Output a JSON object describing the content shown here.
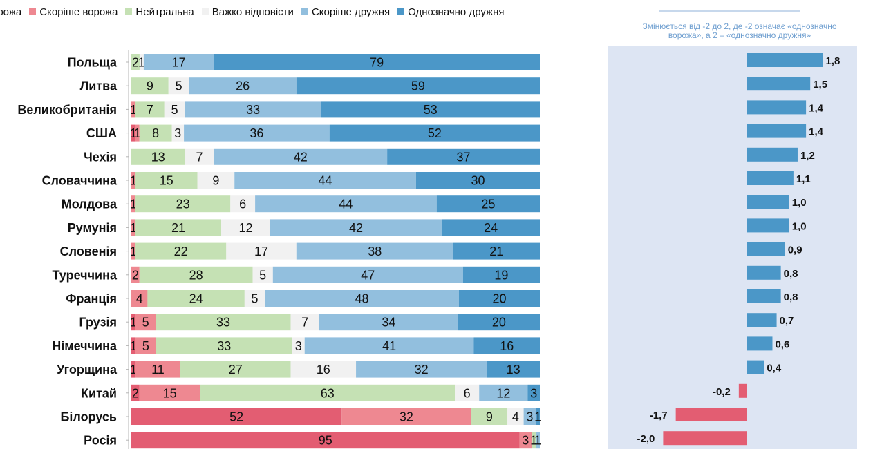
{
  "legend": [
    {
      "label": "орожа",
      "color": "#e35d72"
    },
    {
      "label": "Скоріше ворожа",
      "color": "#ee8891"
    },
    {
      "label": "Нейтральна",
      "color": "#c5e1b4"
    },
    {
      "label": "Важко відповісти",
      "color": "#f1f1f1"
    },
    {
      "label": "Скоріше дружня",
      "color": "#92bfde"
    },
    {
      "label": "Однозначно дружня",
      "color": "#4b97c8"
    }
  ],
  "right_note": {
    "line1": "Змінюється від -2 до 2, де -2 означає «однозначно",
    "line2": "ворожа», а 2 – «однозначно дружня»"
  },
  "chart_data": [
    {
      "type": "bar",
      "orientation": "horizontal",
      "stacked": true,
      "categories": [
        "Польща",
        "Литва",
        "Великобританія",
        "США",
        "Чехія",
        "Словаччина",
        "Молдова",
        "Румунія",
        "Словенія",
        "Туреччина",
        "Франція",
        "Грузія",
        "Німеччина",
        "Угорщина",
        "Китай",
        "Білорусь",
        "Росія"
      ],
      "series": [
        {
          "name": "орожа",
          "color": "#e35d72",
          "values": [
            0,
            0,
            0,
            1,
            0,
            0,
            0,
            0,
            0,
            0,
            0,
            1,
            1,
            1,
            2,
            52,
            95
          ]
        },
        {
          "name": "Скоріше ворожа",
          "color": "#ee8891",
          "values": [
            0,
            0,
            1,
            1,
            0,
            1,
            1,
            1,
            1,
            2,
            4,
            5,
            5,
            11,
            15,
            32,
            3
          ]
        },
        {
          "name": "Нейтральна",
          "color": "#c5e1b4",
          "values": [
            2,
            9,
            7,
            8,
            13,
            15,
            23,
            21,
            22,
            28,
            24,
            33,
            33,
            27,
            63,
            9,
            1
          ]
        },
        {
          "name": "Важко відповісти",
          "color": "#f1f1f1",
          "values": [
            1,
            5,
            5,
            3,
            7,
            9,
            6,
            12,
            17,
            5,
            5,
            7,
            3,
            16,
            6,
            4,
            0
          ]
        },
        {
          "name": "Скоріше дружня",
          "color": "#92bfde",
          "values": [
            17,
            26,
            33,
            36,
            42,
            44,
            44,
            42,
            38,
            47,
            48,
            34,
            41,
            32,
            12,
            3,
            1
          ]
        },
        {
          "name": "Однозначно дружня",
          "color": "#4b97c8",
          "values": [
            79,
            59,
            53,
            52,
            37,
            30,
            25,
            24,
            21,
            19,
            20,
            20,
            16,
            13,
            3,
            1,
            0
          ]
        }
      ]
    },
    {
      "type": "bar",
      "orientation": "horizontal",
      "categories": [
        "Польща",
        "Литва",
        "Великобританія",
        "США",
        "Чехія",
        "Словаччина",
        "Молдова",
        "Румунія",
        "Словенія",
        "Туреччина",
        "Франція",
        "Грузія",
        "Німеччина",
        "Угорщина",
        "Китай",
        "Білорусь",
        "Росія"
      ],
      "values": [
        1.8,
        1.5,
        1.4,
        1.4,
        1.2,
        1.1,
        1.0,
        1.0,
        0.9,
        0.8,
        0.8,
        0.7,
        0.6,
        0.4,
        -0.2,
        -1.7,
        -2.0
      ],
      "value_labels": [
        "1,8",
        "1,5",
        "1,4",
        "1,4",
        "1,2",
        "1,1",
        "1,0",
        "1,0",
        "0,9",
        "0,8",
        "0,8",
        "0,7",
        "0,6",
        "0,4",
        "-0,2",
        "-1,7",
        "-2,0"
      ],
      "xlim": [
        -2,
        2
      ],
      "positive_color": "#4b97c8",
      "negative_color": "#e35d72"
    }
  ]
}
